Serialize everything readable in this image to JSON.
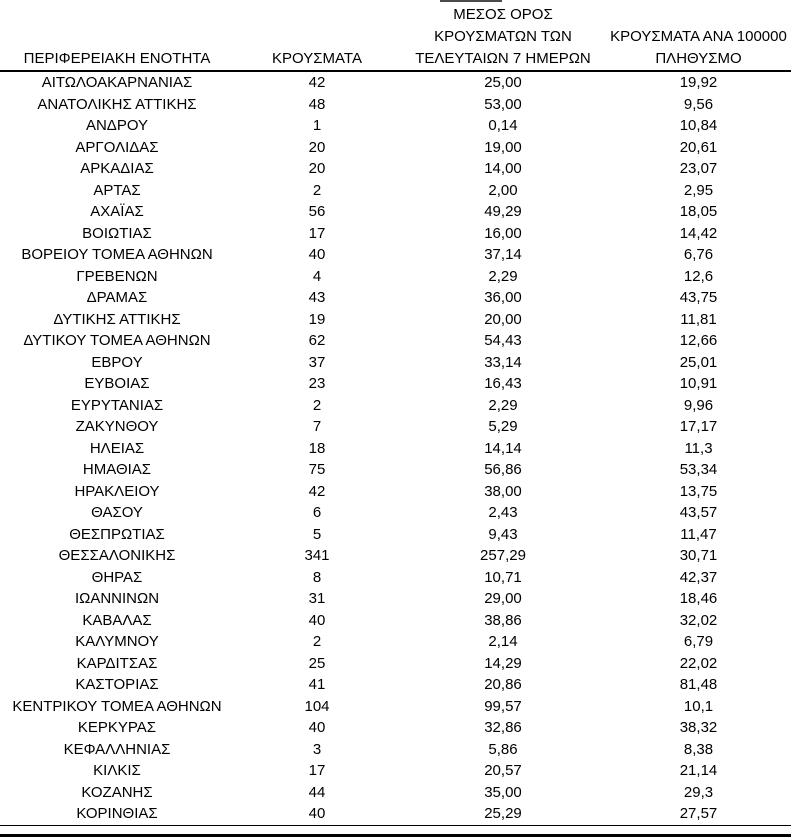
{
  "table": {
    "headers": {
      "col1": "ΠΕΡΙΦΕΡΕΙΑΚΗ ΕΝΟΤΗΤΑ",
      "col2": "ΚΡΟΥΣΜΑΤΑ",
      "col3_lines": [
        "ΜΕΣΟΣ ΟΡΟΣ",
        "ΚΡΟΥΣΜΑΤΩΝ ΤΩΝ",
        "ΤΕΛΕΥΤΑΙΩΝ 7 ΗΜΕΡΩΝ"
      ],
      "col4_lines": [
        "ΚΡΟΥΣΜΑΤΑ ΑΝΑ 100000",
        "ΠΛΗΘΥΣΜΟ"
      ]
    },
    "rows": [
      {
        "region": "ΑΙΤΩΛΟΑΚΑΡΝΑΝΙΑΣ",
        "cases": "42",
        "avg7": "25,00",
        "per100k": "19,92"
      },
      {
        "region": "ΑΝΑΤΟΛΙΚΗΣ ΑΤΤΙΚΗΣ",
        "cases": "48",
        "avg7": "53,00",
        "per100k": "9,56"
      },
      {
        "region": "ΑΝΔΡΟΥ",
        "cases": "1",
        "avg7": "0,14",
        "per100k": "10,84"
      },
      {
        "region": "ΑΡΓΟΛΙΔΑΣ",
        "cases": "20",
        "avg7": "19,00",
        "per100k": "20,61"
      },
      {
        "region": "ΑΡΚΑΔΙΑΣ",
        "cases": "20",
        "avg7": "14,00",
        "per100k": "23,07"
      },
      {
        "region": "ΑΡΤΑΣ",
        "cases": "2",
        "avg7": "2,00",
        "per100k": "2,95"
      },
      {
        "region": "ΑΧΑΪΑΣ",
        "cases": "56",
        "avg7": "49,29",
        "per100k": "18,05"
      },
      {
        "region": "ΒΟΙΩΤΙΑΣ",
        "cases": "17",
        "avg7": "16,00",
        "per100k": "14,42"
      },
      {
        "region": "ΒΟΡΕΙΟΥ ΤΟΜΕΑ ΑΘΗΝΩΝ",
        "cases": "40",
        "avg7": "37,14",
        "per100k": "6,76"
      },
      {
        "region": "ΓΡΕΒΕΝΩΝ",
        "cases": "4",
        "avg7": "2,29",
        "per100k": "12,6"
      },
      {
        "region": "ΔΡΑΜΑΣ",
        "cases": "43",
        "avg7": "36,00",
        "per100k": "43,75"
      },
      {
        "region": "ΔΥΤΙΚΗΣ ΑΤΤΙΚΗΣ",
        "cases": "19",
        "avg7": "20,00",
        "per100k": "11,81"
      },
      {
        "region": "ΔΥΤΙΚΟΥ ΤΟΜΕΑ ΑΘΗΝΩΝ",
        "cases": "62",
        "avg7": "54,43",
        "per100k": "12,66"
      },
      {
        "region": "ΕΒΡΟΥ",
        "cases": "37",
        "avg7": "33,14",
        "per100k": "25,01"
      },
      {
        "region": "ΕΥΒΟΙΑΣ",
        "cases": "23",
        "avg7": "16,43",
        "per100k": "10,91"
      },
      {
        "region": "ΕΥΡΥΤΑΝΙΑΣ",
        "cases": "2",
        "avg7": "2,29",
        "per100k": "9,96"
      },
      {
        "region": "ΖΑΚΥΝΘΟΥ",
        "cases": "7",
        "avg7": "5,29",
        "per100k": "17,17"
      },
      {
        "region": "ΗΛΕΙΑΣ",
        "cases": "18",
        "avg7": "14,14",
        "per100k": "11,3"
      },
      {
        "region": "ΗΜΑΘΙΑΣ",
        "cases": "75",
        "avg7": "56,86",
        "per100k": "53,34"
      },
      {
        "region": "ΗΡΑΚΛΕΙΟΥ",
        "cases": "42",
        "avg7": "38,00",
        "per100k": "13,75"
      },
      {
        "region": "ΘΑΣΟΥ",
        "cases": "6",
        "avg7": "2,43",
        "per100k": "43,57"
      },
      {
        "region": "ΘΕΣΠΡΩΤΙΑΣ",
        "cases": "5",
        "avg7": "9,43",
        "per100k": "11,47"
      },
      {
        "region": "ΘΕΣΣΑΛΟΝΙΚΗΣ",
        "cases": "341",
        "avg7": "257,29",
        "per100k": "30,71"
      },
      {
        "region": "ΘΗΡΑΣ",
        "cases": "8",
        "avg7": "10,71",
        "per100k": "42,37"
      },
      {
        "region": "ΙΩΑΝΝΙΝΩΝ",
        "cases": "31",
        "avg7": "29,00",
        "per100k": "18,46"
      },
      {
        "region": "ΚΑΒΑΛΑΣ",
        "cases": "40",
        "avg7": "38,86",
        "per100k": "32,02"
      },
      {
        "region": "ΚΑΛΥΜΝΟΥ",
        "cases": "2",
        "avg7": "2,14",
        "per100k": "6,79"
      },
      {
        "region": "ΚΑΡΔΙΤΣΑΣ",
        "cases": "25",
        "avg7": "14,29",
        "per100k": "22,02"
      },
      {
        "region": "ΚΑΣΤΟΡΙΑΣ",
        "cases": "41",
        "avg7": "20,86",
        "per100k": "81,48"
      },
      {
        "region": "ΚΕΝΤΡΙΚΟΥ ΤΟΜΕΑ ΑΘΗΝΩΝ",
        "cases": "104",
        "avg7": "99,57",
        "per100k": "10,1"
      },
      {
        "region": "ΚΕΡΚΥΡΑΣ",
        "cases": "40",
        "avg7": "32,86",
        "per100k": "38,32"
      },
      {
        "region": "ΚΕΦΑΛΛΗΝΙΑΣ",
        "cases": "3",
        "avg7": "5,86",
        "per100k": "8,38"
      },
      {
        "region": "ΚΙΛΚΙΣ",
        "cases": "17",
        "avg7": "20,57",
        "per100k": "21,14"
      },
      {
        "region": "ΚΟΖΑΝΗΣ",
        "cases": "44",
        "avg7": "35,00",
        "per100k": "29,3"
      },
      {
        "region": "ΚΟΡΙΝΘΙΑΣ",
        "cases": "40",
        "avg7": "25,29",
        "per100k": "27,57"
      }
    ]
  },
  "colors": {
    "text": "#000000",
    "background": "#ffffff",
    "border": "#000000"
  }
}
